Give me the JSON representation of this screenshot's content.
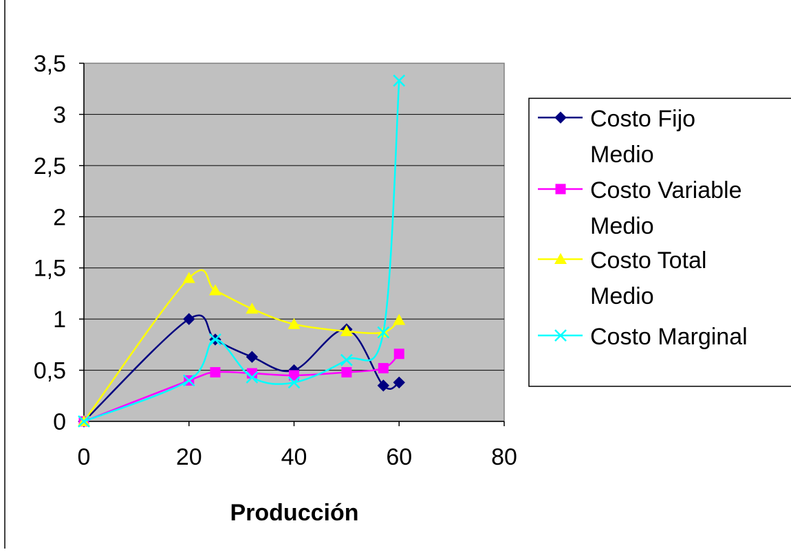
{
  "chart_data": {
    "type": "line",
    "title": "",
    "xlabel": "Producción",
    "ylabel": "",
    "xlim": [
      0,
      80
    ],
    "ylim": [
      0,
      3.5
    ],
    "x_ticks": [
      "0",
      "20",
      "40",
      "60",
      "80"
    ],
    "y_ticks": [
      "0",
      "0,5",
      "1",
      "1,5",
      "2",
      "2,5",
      "3",
      "3,5"
    ],
    "grid": true,
    "legend_position": "right",
    "plot_background": "#c0c0c0",
    "series": [
      {
        "name_lines": [
          "Costo Fijo",
          "Medio"
        ],
        "color": "#000080",
        "marker": "diamond",
        "points": [
          [
            0,
            0
          ],
          [
            20,
            1.0
          ],
          [
            25,
            0.8
          ],
          [
            32,
            0.63
          ],
          [
            40,
            0.5
          ],
          [
            50,
            0.9
          ],
          [
            57,
            0.35
          ],
          [
            60,
            0.38
          ]
        ]
      },
      {
        "name_lines": [
          "Costo Variable",
          "Medio"
        ],
        "color": "#ff00ff",
        "marker": "square",
        "points": [
          [
            0,
            0
          ],
          [
            20,
            0.4
          ],
          [
            25,
            0.48
          ],
          [
            32,
            0.47
          ],
          [
            40,
            0.45
          ],
          [
            50,
            0.48
          ],
          [
            57,
            0.52
          ],
          [
            60,
            0.66
          ]
        ]
      },
      {
        "name_lines": [
          "Costo Total",
          "Medio"
        ],
        "color": "#ffff00",
        "marker": "triangle",
        "points": [
          [
            0,
            0
          ],
          [
            20,
            1.4
          ],
          [
            25,
            1.28
          ],
          [
            32,
            1.1
          ],
          [
            40,
            0.95
          ],
          [
            50,
            0.88
          ],
          [
            57,
            0.87
          ],
          [
            60,
            0.99
          ]
        ]
      },
      {
        "name_lines": [
          "Costo Marginal"
        ],
        "color": "#00ffff",
        "marker": "x",
        "points": [
          [
            0,
            0
          ],
          [
            20,
            0.4
          ],
          [
            25,
            0.8
          ],
          [
            32,
            0.43
          ],
          [
            40,
            0.38
          ],
          [
            50,
            0.6
          ],
          [
            57,
            0.87
          ],
          [
            60,
            3.33
          ]
        ]
      }
    ]
  }
}
